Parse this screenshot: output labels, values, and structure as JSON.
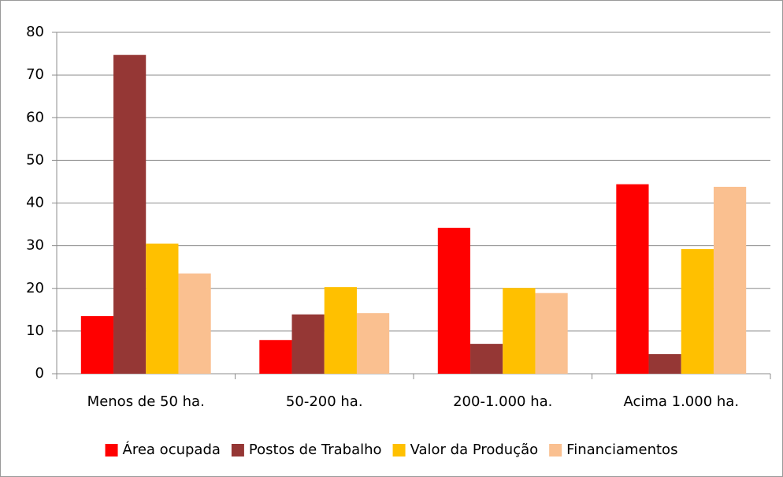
{
  "chart_data": {
    "type": "bar",
    "categories": [
      "Menos de 50 ha.",
      "50-200 ha.",
      "200-1.000 ha.",
      "Acima 1.000 ha."
    ],
    "series": [
      {
        "name": "Área ocupada",
        "color": "#ff0000",
        "values": [
          13.5,
          7.9,
          34.2,
          44.4
        ]
      },
      {
        "name": "Postos de Trabalho",
        "color": "#953735",
        "values": [
          74.7,
          13.9,
          7.0,
          4.6
        ]
      },
      {
        "name": "Valor da Produção",
        "color": "#ffc000",
        "values": [
          30.5,
          20.3,
          20.1,
          29.2
        ]
      },
      {
        "name": "Financiamentos",
        "color": "#fac090",
        "values": [
          23.5,
          14.2,
          18.9,
          43.8
        ]
      }
    ],
    "ylim": [
      0,
      80
    ],
    "yticks": [
      0,
      10,
      20,
      30,
      40,
      50,
      60,
      70,
      80
    ],
    "grid": true,
    "legend": "bottom"
  }
}
